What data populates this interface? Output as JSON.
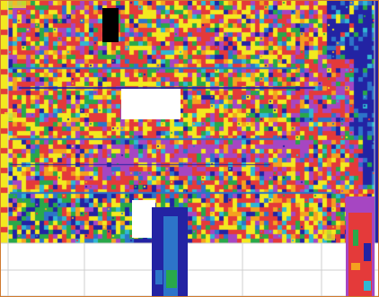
{
  "map": {
    "palette": [
      "#2323a3",
      "#2d74c9",
      "#30b8d2",
      "#29a84a",
      "#f3e91f",
      "#f5a11f",
      "#e43a3a",
      "#a646c2"
    ],
    "background_color": "#ffffff",
    "border_color": "#d07a2f",
    "grid_line_color": "#cfcfcf",
    "obstacle_color": "#000000"
  }
}
